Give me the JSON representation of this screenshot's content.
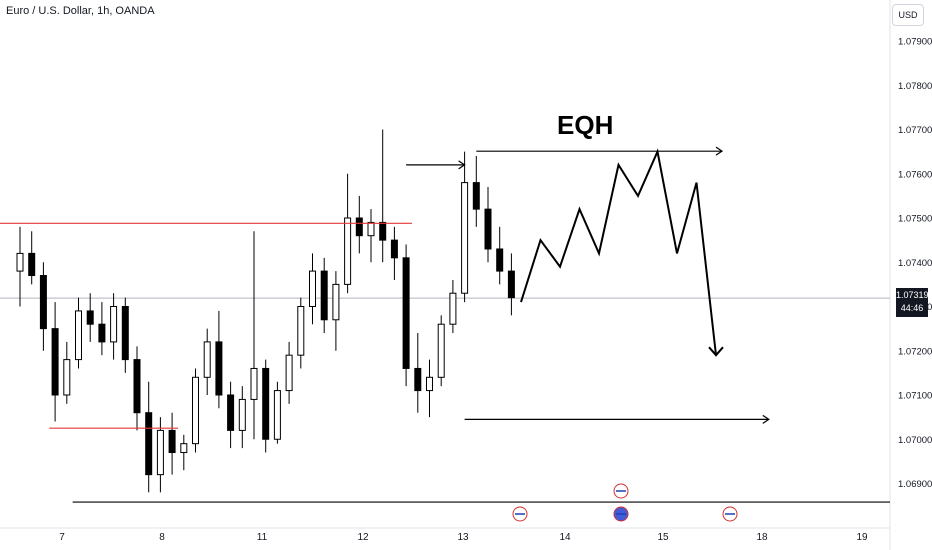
{
  "header": {
    "title": "Euro / U.S. Dollar, 1h, OANDA",
    "currency": "USD"
  },
  "price_tag": {
    "price": "1.07319",
    "countdown": "44:46"
  },
  "annotation": {
    "text": "EQH"
  },
  "colors": {
    "candle": "#000000",
    "support_line": "#e53935",
    "grid": "#f0f3fa",
    "current_price_line": "#b2b5be"
  },
  "chart_data": {
    "type": "candlestick",
    "title": "Euro / U.S. Dollar, 1h, OANDA",
    "y_ticks": [
      "1.07900",
      "1.07800",
      "1.07700",
      "1.07600",
      "1.07500",
      "1.07400",
      "1.07300",
      "1.07200",
      "1.07100",
      "1.07000",
      "1.06900"
    ],
    "y_range": [
      1.0682,
      1.0796
    ],
    "x_ticks": [
      "7",
      "8",
      "11",
      "12",
      "13",
      "14",
      "15",
      "18",
      "19"
    ],
    "current_price": 1.07319,
    "ohlc": [
      [
        1.0738,
        1.0748,
        1.073,
        1.0742
      ],
      [
        1.0742,
        1.0747,
        1.0735,
        1.0737
      ],
      [
        1.0737,
        1.074,
        1.072,
        1.0725
      ],
      [
        1.0725,
        1.0731,
        1.0704,
        1.071
      ],
      [
        1.071,
        1.0722,
        1.0708,
        1.0718
      ],
      [
        1.0718,
        1.0732,
        1.0716,
        1.0729
      ],
      [
        1.0729,
        1.0733,
        1.0722,
        1.0726
      ],
      [
        1.0726,
        1.0731,
        1.0719,
        1.0722
      ],
      [
        1.0722,
        1.0733,
        1.0718,
        1.073
      ],
      [
        1.073,
        1.0732,
        1.0715,
        1.0718
      ],
      [
        1.0718,
        1.0721,
        1.0702,
        1.0706
      ],
      [
        1.0706,
        1.0713,
        1.0688,
        1.0692
      ],
      [
        1.0692,
        1.0705,
        1.0688,
        1.0702
      ],
      [
        1.0702,
        1.0706,
        1.0692,
        1.0697
      ],
      [
        1.0697,
        1.0701,
        1.0693,
        1.0699
      ],
      [
        1.0699,
        1.0716,
        1.0697,
        1.0714
      ],
      [
        1.0714,
        1.0725,
        1.071,
        1.0722
      ],
      [
        1.0722,
        1.0729,
        1.0707,
        1.071
      ],
      [
        1.071,
        1.0713,
        1.0698,
        1.0702
      ],
      [
        1.0702,
        1.0712,
        1.0698,
        1.0709
      ],
      [
        1.0709,
        1.0747,
        1.07,
        1.0716
      ],
      [
        1.0716,
        1.0718,
        1.0697,
        1.07
      ],
      [
        1.07,
        1.0713,
        1.0699,
        1.0711
      ],
      [
        1.0711,
        1.0722,
        1.0708,
        1.0719
      ],
      [
        1.0719,
        1.0732,
        1.0716,
        1.073
      ],
      [
        1.073,
        1.0742,
        1.0726,
        1.0738
      ],
      [
        1.0738,
        1.0741,
        1.0724,
        1.0727
      ],
      [
        1.0727,
        1.0738,
        1.072,
        1.0735
      ],
      [
        1.0735,
        1.076,
        1.0733,
        1.075
      ],
      [
        1.075,
        1.0755,
        1.0742,
        1.0746
      ],
      [
        1.0746,
        1.0752,
        1.074,
        1.0749
      ],
      [
        1.0749,
        1.077,
        1.074,
        1.0745
      ],
      [
        1.0745,
        1.0748,
        1.0736,
        1.0741
      ],
      [
        1.0741,
        1.0744,
        1.0712,
        1.0716
      ],
      [
        1.0716,
        1.0724,
        1.0706,
        1.0711
      ],
      [
        1.0711,
        1.0718,
        1.0705,
        1.0714
      ],
      [
        1.0714,
        1.0728,
        1.0712,
        1.0726
      ],
      [
        1.0726,
        1.0736,
        1.0724,
        1.0733
      ],
      [
        1.0733,
        1.0765,
        1.0731,
        1.0758
      ],
      [
        1.0758,
        1.0764,
        1.0748,
        1.0752
      ],
      [
        1.0752,
        1.0757,
        1.074,
        1.0743
      ],
      [
        1.0743,
        1.0748,
        1.0735,
        1.0738
      ],
      [
        1.0738,
        1.0742,
        1.0728,
        1.0732
      ]
    ],
    "lines": [
      {
        "kind": "horizontal",
        "color": "red",
        "from": 0,
        "to": 33.5,
        "price": 1.07488
      },
      {
        "kind": "horizontal",
        "color": "red",
        "from": 2.5,
        "to": 13.5,
        "price": 1.07025
      },
      {
        "kind": "horizontal",
        "color": "black",
        "from": 4.5,
        "to": 999,
        "price": 1.06858
      },
      {
        "kind": "arrow",
        "price": 1.0762,
        "from": 33,
        "to": 38
      },
      {
        "kind": "arrow",
        "price": 1.07651,
        "from": 39,
        "to": 60
      },
      {
        "kind": "arrow",
        "price": 1.07045,
        "from": 38,
        "to": 64
      }
    ],
    "projection": [
      [
        1.0731,
        0
      ],
      [
        1.0745,
        1
      ],
      [
        1.0739,
        2
      ],
      [
        1.0752,
        3
      ],
      [
        1.0742,
        4
      ],
      [
        1.0762,
        5
      ],
      [
        1.0755,
        6
      ],
      [
        1.0765,
        7
      ],
      [
        1.0742,
        8
      ],
      [
        1.0758,
        9
      ],
      [
        1.0719,
        10
      ]
    ],
    "events": [
      {
        "x_label": "13",
        "kind": "flag"
      },
      {
        "x_label": "14",
        "kind": "flag"
      },
      {
        "x_label": "14",
        "kind": "globe"
      },
      {
        "x_label": "15",
        "kind": "flag"
      }
    ]
  }
}
